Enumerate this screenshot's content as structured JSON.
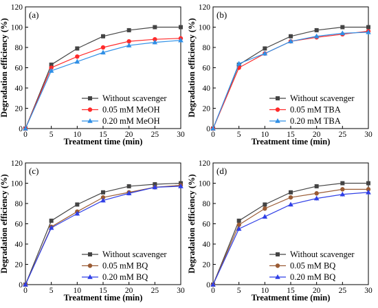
{
  "chart_data": [
    {
      "type": "line",
      "panel_label": "(a)",
      "xlabel": "Treatment time (min)",
      "ylabel": "Degradation efficiency (%)",
      "xlim": [
        0,
        30
      ],
      "ylim": [
        0,
        120
      ],
      "xticks": [
        0,
        5,
        10,
        15,
        20,
        25,
        30
      ],
      "yticks": [
        0,
        20,
        40,
        60,
        80,
        100,
        120
      ],
      "legend_position": "bottom-right",
      "x": [
        0,
        5,
        10,
        15,
        20,
        25,
        30
      ],
      "series": [
        {
          "name": "Without scavenger",
          "color": "#444444",
          "marker": "square",
          "values": [
            0,
            63,
            79,
            91,
            97,
            100,
            100
          ]
        },
        {
          "name": "0.05 mM MeOH",
          "color": "#ff2a2a",
          "marker": "circle",
          "values": [
            0,
            60,
            71,
            80,
            86,
            88,
            89
          ]
        },
        {
          "name": "0.20 mM MeOH",
          "color": "#2f8fe6",
          "marker": "triangle",
          "values": [
            0,
            57,
            66,
            75,
            82,
            85,
            87
          ]
        }
      ]
    },
    {
      "type": "line",
      "panel_label": "(b)",
      "xlabel": "Treatment time (min)",
      "ylabel": "Degradation efficiency (%)",
      "xlim": [
        0,
        30
      ],
      "ylim": [
        0,
        120
      ],
      "xticks": [
        0,
        5,
        10,
        15,
        20,
        25,
        30
      ],
      "yticks": [
        0,
        20,
        40,
        60,
        80,
        100,
        120
      ],
      "legend_position": "bottom-right",
      "x": [
        0,
        5,
        10,
        15,
        20,
        25,
        30
      ],
      "series": [
        {
          "name": "Without scavenger",
          "color": "#444444",
          "marker": "square",
          "values": [
            0,
            63,
            79,
            91,
            97,
            100,
            100
          ]
        },
        {
          "name": "0.05 mM TBA",
          "color": "#ff2a2a",
          "marker": "circle",
          "values": [
            0,
            60,
            74,
            86,
            90,
            93,
            96
          ]
        },
        {
          "name": "0.20 mM TBA",
          "color": "#2f8fe6",
          "marker": "triangle",
          "values": [
            0,
            64,
            74,
            86,
            91,
            94,
            95
          ]
        }
      ]
    },
    {
      "type": "line",
      "panel_label": "(c)",
      "xlabel": "Treatment time (min)",
      "ylabel": "Degradation efficiency (%)",
      "xlim": [
        0,
        30
      ],
      "ylim": [
        0,
        120
      ],
      "xticks": [
        0,
        5,
        10,
        15,
        20,
        25,
        30
      ],
      "yticks": [
        0,
        20,
        40,
        60,
        80,
        100,
        120
      ],
      "legend_position": "bottom-right",
      "x": [
        0,
        5,
        10,
        15,
        20,
        25,
        30
      ],
      "series": [
        {
          "name": "Without scavenger",
          "color": "#444444",
          "marker": "square",
          "values": [
            0,
            63,
            79,
            91,
            97,
            99,
            100
          ]
        },
        {
          "name": "0.05 mM BQ",
          "color": "#9a5b34",
          "marker": "circle",
          "values": [
            0,
            57,
            72,
            86,
            91,
            96,
            98
          ]
        },
        {
          "name": "0.20 mM BQ",
          "color": "#2f3fe6",
          "marker": "triangle",
          "values": [
            0,
            56,
            70,
            83,
            90,
            96,
            97
          ]
        }
      ]
    },
    {
      "type": "line",
      "panel_label": "(d)",
      "xlabel": "Treatment time (min)",
      "ylabel": "Degradation efficiency (%)",
      "xlim": [
        0,
        30
      ],
      "ylim": [
        0,
        120
      ],
      "xticks": [
        0,
        5,
        10,
        15,
        20,
        25,
        30
      ],
      "yticks": [
        0,
        20,
        40,
        60,
        80,
        100,
        120
      ],
      "legend_position": "bottom-right",
      "x": [
        0,
        5,
        10,
        15,
        20,
        25,
        30
      ],
      "series": [
        {
          "name": "Without scavenger",
          "color": "#444444",
          "marker": "square",
          "values": [
            0,
            63,
            79,
            91,
            97,
            100,
            100
          ]
        },
        {
          "name": "0.05 mM BQ",
          "color": "#9a5b34",
          "marker": "circle",
          "values": [
            0,
            59,
            75,
            86,
            90,
            94,
            94
          ]
        },
        {
          "name": "0.20 mM BQ",
          "color": "#2f3fe6",
          "marker": "triangle",
          "values": [
            0,
            55,
            67,
            79,
            85,
            89,
            91
          ]
        }
      ]
    }
  ]
}
